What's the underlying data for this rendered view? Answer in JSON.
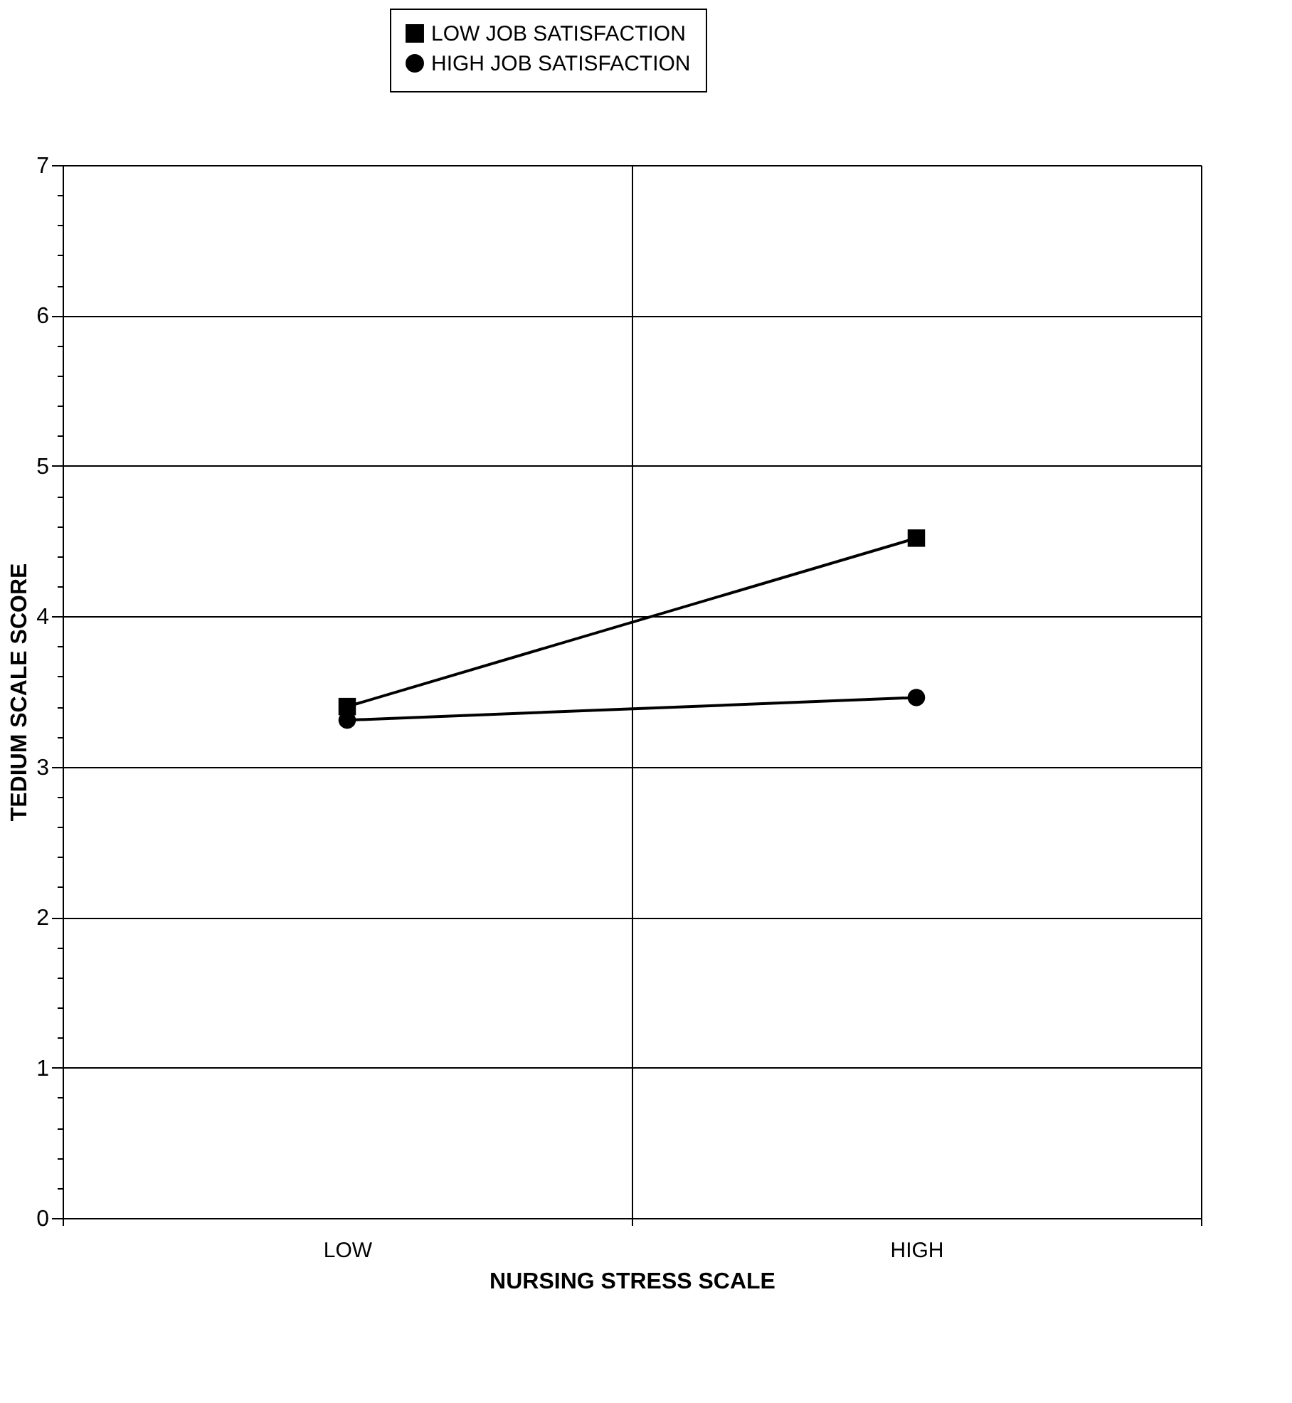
{
  "chart_data": {
    "type": "line",
    "xlabel": "NURSING STRESS SCALE",
    "ylabel": "TEDIUM SCALE SCORE",
    "categories": [
      "LOW",
      "HIGH"
    ],
    "series": [
      {
        "name": "LOW JOB SATISFACTION",
        "color": "#000000",
        "marker": "square",
        "values": [
          3.4,
          4.52
        ]
      },
      {
        "name": "HIGH JOB SATISFACTION",
        "color": "#000000",
        "marker": "circle",
        "values": [
          3.31,
          3.46
        ]
      }
    ],
    "ylim": [
      0,
      7
    ],
    "yticks": [
      0,
      {
        "value": 0.2,
        "label": null
      },
      {
        "value": 0.4,
        "label": null
      },
      {
        "value": 0.6,
        "label": null
      },
      {
        "value": 0.8,
        "label": null
      },
      1,
      {
        "value": 1.2,
        "label": null
      },
      {
        "value": 1.4,
        "label": null
      },
      {
        "value": 1.6,
        "label": null
      },
      {
        "value": 1.8,
        "label": null
      },
      2,
      {
        "value": 2.2,
        "label": null
      },
      {
        "value": 2.4,
        "label": null
      },
      {
        "value": 2.6,
        "label": null
      },
      {
        "value": 2.8,
        "label": null
      },
      3,
      {
        "value": 3.2,
        "label": null
      },
      {
        "value": 3.4,
        "label": null
      },
      {
        "value": 3.6,
        "label": null
      },
      {
        "value": 3.8,
        "label": null
      },
      4,
      {
        "value": 4.2,
        "label": null
      },
      {
        "value": 4.4,
        "label": null
      },
      {
        "value": 4.6,
        "label": null
      },
      {
        "value": 4.8,
        "label": null
      },
      5,
      {
        "value": 5.2,
        "label": null
      },
      {
        "value": 5.4,
        "label": null
      },
      {
        "value": 5.6,
        "label": null
      },
      {
        "value": 5.8,
        "label": null
      },
      6,
      {
        "value": 6.2,
        "label": null
      },
      {
        "value": 6.4,
        "label": null
      },
      {
        "value": 6.6,
        "label": null
      },
      {
        "value": 6.8,
        "label": null
      },
      7
    ],
    "grid": true,
    "legend": "top",
    "line_style": "solid"
  }
}
